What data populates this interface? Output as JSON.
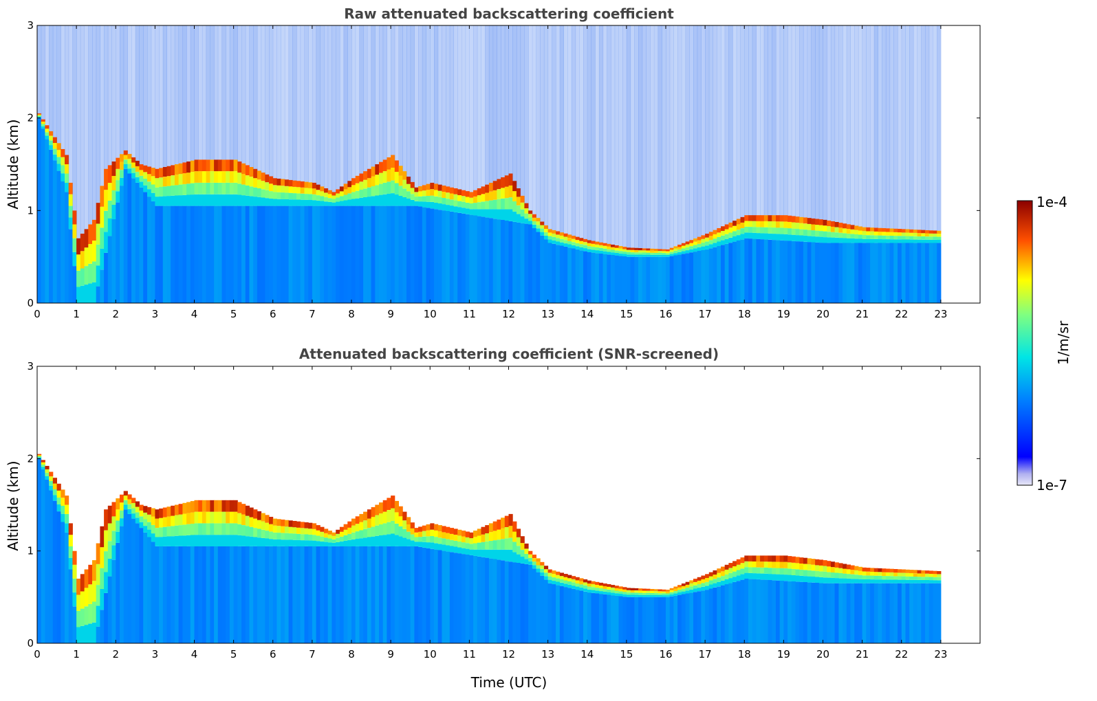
{
  "figure": {
    "xlabel": "Time (UTC)",
    "colorbar": {
      "label": "1/m/sr",
      "max_label": "1e-4",
      "min_label": "1e-7",
      "scale": "log",
      "colormap": "jet",
      "min_color": "#e8e8f8",
      "max_color": "#8b0000"
    }
  },
  "chart_data": [
    {
      "type": "heatmap",
      "title": "Raw attenuated backscattering coefficient",
      "xlabel": "",
      "ylabel": "Altitude (km)",
      "xlim": [
        0,
        24
      ],
      "ylim": [
        0,
        3
      ],
      "xticks": [
        "0",
        "1",
        "2",
        "3",
        "4",
        "5",
        "6",
        "7",
        "8",
        "9",
        "10",
        "11",
        "12",
        "13",
        "14",
        "15",
        "16",
        "17",
        "18",
        "19",
        "20",
        "21",
        "22",
        "23"
      ],
      "yticks": [
        "0",
        "1",
        "2",
        "3"
      ],
      "data_end_time": 23,
      "screened": false,
      "boundary_layer_top_km": [
        [
          0,
          2.05
        ],
        [
          0.7,
          1.6
        ],
        [
          1.0,
          0.7
        ],
        [
          1.4,
          0.9
        ],
        [
          1.7,
          1.45
        ],
        [
          2.2,
          1.65
        ],
        [
          2.6,
          1.5
        ],
        [
          3,
          1.45
        ],
        [
          4,
          1.55
        ],
        [
          5,
          1.55
        ],
        [
          6,
          1.35
        ],
        [
          7,
          1.3
        ],
        [
          7.5,
          1.2
        ],
        [
          8,
          1.35
        ],
        [
          9,
          1.6
        ],
        [
          9.6,
          1.25
        ],
        [
          10,
          1.3
        ],
        [
          11,
          1.2
        ],
        [
          12,
          1.4
        ],
        [
          12.5,
          1.0
        ],
        [
          13,
          0.8
        ],
        [
          14,
          0.68
        ],
        [
          15,
          0.6
        ],
        [
          16,
          0.58
        ],
        [
          17,
          0.75
        ],
        [
          17.5,
          0.85
        ],
        [
          18,
          0.95
        ],
        [
          19,
          0.95
        ],
        [
          20,
          0.9
        ],
        [
          21,
          0.82
        ],
        [
          22,
          0.8
        ],
        [
          23,
          0.78
        ]
      ],
      "aerosol_layer_top_km": [
        [
          0,
          2.0
        ],
        [
          0.7,
          1.2
        ],
        [
          1.0,
          0.0
        ],
        [
          1.4,
          0.0
        ],
        [
          2.2,
          1.45
        ],
        [
          3,
          1.05
        ],
        [
          9.6,
          1.05
        ],
        [
          12.5,
          0.85
        ],
        [
          13,
          0.65
        ],
        [
          14,
          0.55
        ],
        [
          15,
          0.5
        ],
        [
          16,
          0.5
        ],
        [
          17,
          0.58
        ],
        [
          18,
          0.7
        ],
        [
          20,
          0.65
        ],
        [
          23,
          0.65
        ]
      ]
    },
    {
      "type": "heatmap",
      "title": "Attenuated backscattering coefficient (SNR-screened)",
      "xlabel": "Time (UTC)",
      "ylabel": "Altitude (km)",
      "xlim": [
        0,
        24
      ],
      "ylim": [
        0,
        3
      ],
      "xticks": [
        "0",
        "1",
        "2",
        "3",
        "4",
        "5",
        "6",
        "7",
        "8",
        "9",
        "10",
        "11",
        "12",
        "13",
        "14",
        "15",
        "16",
        "17",
        "18",
        "19",
        "20",
        "21",
        "22",
        "23"
      ],
      "yticks": [
        "0",
        "1",
        "2",
        "3"
      ],
      "data_end_time": 23,
      "screened": true,
      "boundary_layer_top_km": [
        [
          0,
          2.05
        ],
        [
          0.7,
          1.6
        ],
        [
          1.0,
          0.7
        ],
        [
          1.4,
          0.9
        ],
        [
          1.7,
          1.45
        ],
        [
          2.2,
          1.65
        ],
        [
          2.6,
          1.5
        ],
        [
          3,
          1.45
        ],
        [
          4,
          1.55
        ],
        [
          5,
          1.55
        ],
        [
          6,
          1.35
        ],
        [
          7,
          1.3
        ],
        [
          7.5,
          1.2
        ],
        [
          8,
          1.35
        ],
        [
          9,
          1.6
        ],
        [
          9.6,
          1.25
        ],
        [
          10,
          1.3
        ],
        [
          11,
          1.2
        ],
        [
          12,
          1.4
        ],
        [
          12.5,
          1.0
        ],
        [
          13,
          0.8
        ],
        [
          14,
          0.68
        ],
        [
          15,
          0.6
        ],
        [
          16,
          0.58
        ],
        [
          17,
          0.75
        ],
        [
          17.5,
          0.85
        ],
        [
          18,
          0.95
        ],
        [
          19,
          0.95
        ],
        [
          20,
          0.9
        ],
        [
          21,
          0.82
        ],
        [
          22,
          0.8
        ],
        [
          23,
          0.78
        ]
      ],
      "aerosol_layer_top_km": [
        [
          0,
          2.0
        ],
        [
          0.7,
          1.2
        ],
        [
          1.0,
          0.0
        ],
        [
          1.4,
          0.0
        ],
        [
          2.2,
          1.45
        ],
        [
          3,
          1.05
        ],
        [
          9.6,
          1.05
        ],
        [
          12.5,
          0.85
        ],
        [
          13,
          0.65
        ],
        [
          14,
          0.55
        ],
        [
          15,
          0.5
        ],
        [
          16,
          0.5
        ],
        [
          17,
          0.58
        ],
        [
          18,
          0.7
        ],
        [
          20,
          0.65
        ],
        [
          23,
          0.65
        ]
      ]
    }
  ]
}
